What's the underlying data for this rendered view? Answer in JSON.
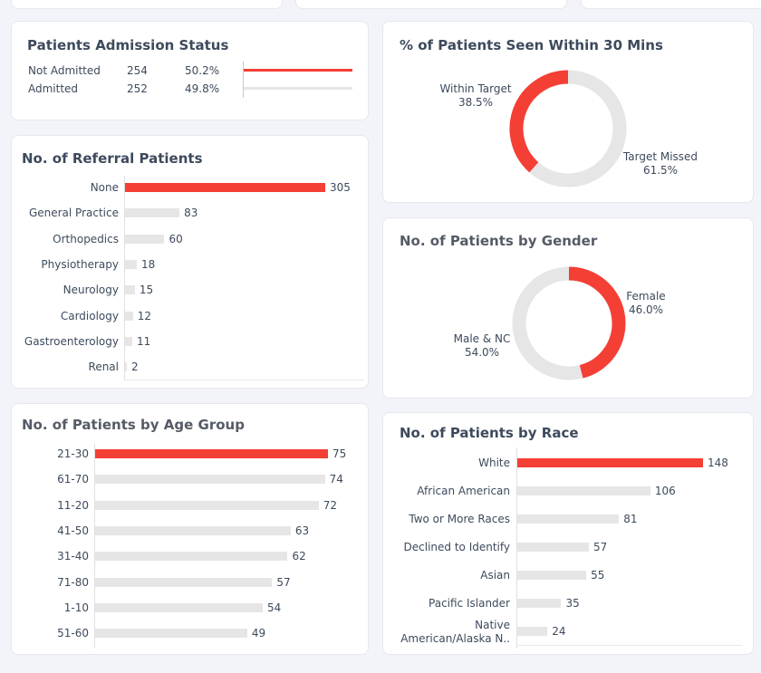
{
  "colors": {
    "accent": "#f43f35",
    "muted": "#e6e6e6",
    "text": "#3d4a5c"
  },
  "admission": {
    "title": "Patients Admission Status",
    "rows": [
      {
        "label": "Not Admitted",
        "count": "254",
        "pct": "50.2%",
        "fraction": 1.0
      },
      {
        "label": "Admitted",
        "count": "252",
        "pct": "49.8%",
        "fraction": 1.0
      }
    ]
  },
  "seen30": {
    "title": "% of Patients Seen Within 30 Mins",
    "within_label": "Within Target",
    "within_pct": "38.5%",
    "missed_label": "Target Missed",
    "missed_pct": "61.5%"
  },
  "gender": {
    "title": "No. of Patients by Gender",
    "female_label": "Female",
    "female_pct": "46.0%",
    "male_label": "Male & NC",
    "male_pct": "54.0%"
  },
  "chart_data": [
    {
      "type": "pie",
      "title": "% of Patients Seen Within 30 Mins",
      "categories": [
        "Within Target",
        "Target Missed"
      ],
      "values": [
        38.5,
        61.5
      ]
    },
    {
      "type": "pie",
      "title": "No. of Patients by Gender",
      "categories": [
        "Female",
        "Male & NC"
      ],
      "values": [
        46.0,
        54.0
      ]
    },
    {
      "type": "bar",
      "title": "No. of Referral Patients",
      "categories": [
        "None",
        "General Practice",
        "Orthopedics",
        "Physiotherapy",
        "Neurology",
        "Cardiology",
        "Gastroenterology",
        "Renal"
      ],
      "values": [
        305,
        83,
        60,
        18,
        15,
        12,
        11,
        2
      ]
    },
    {
      "type": "bar",
      "title": "No. of Patients by Age Group",
      "categories": [
        "21-30",
        "61-70",
        "11-20",
        "41-50",
        "31-40",
        "71-80",
        "1-10",
        "51-60"
      ],
      "values": [
        75,
        74,
        72,
        63,
        62,
        57,
        54,
        49
      ]
    },
    {
      "type": "bar",
      "title": "No. of Patients by Race",
      "categories": [
        "White",
        "African American",
        "Two or More Races",
        "Declined to Identify",
        "Asian",
        "Pacific Islander",
        "Native American/Alaska N.."
      ],
      "category_lines": [
        [
          "White"
        ],
        [
          "African American"
        ],
        [
          "Two or More Races"
        ],
        [
          "Declined to Identify"
        ],
        [
          "Asian"
        ],
        [
          "Pacific Islander"
        ],
        [
          "Native",
          "American/Alaska N.."
        ]
      ],
      "values": [
        148,
        106,
        81,
        57,
        55,
        35,
        24
      ]
    }
  ]
}
